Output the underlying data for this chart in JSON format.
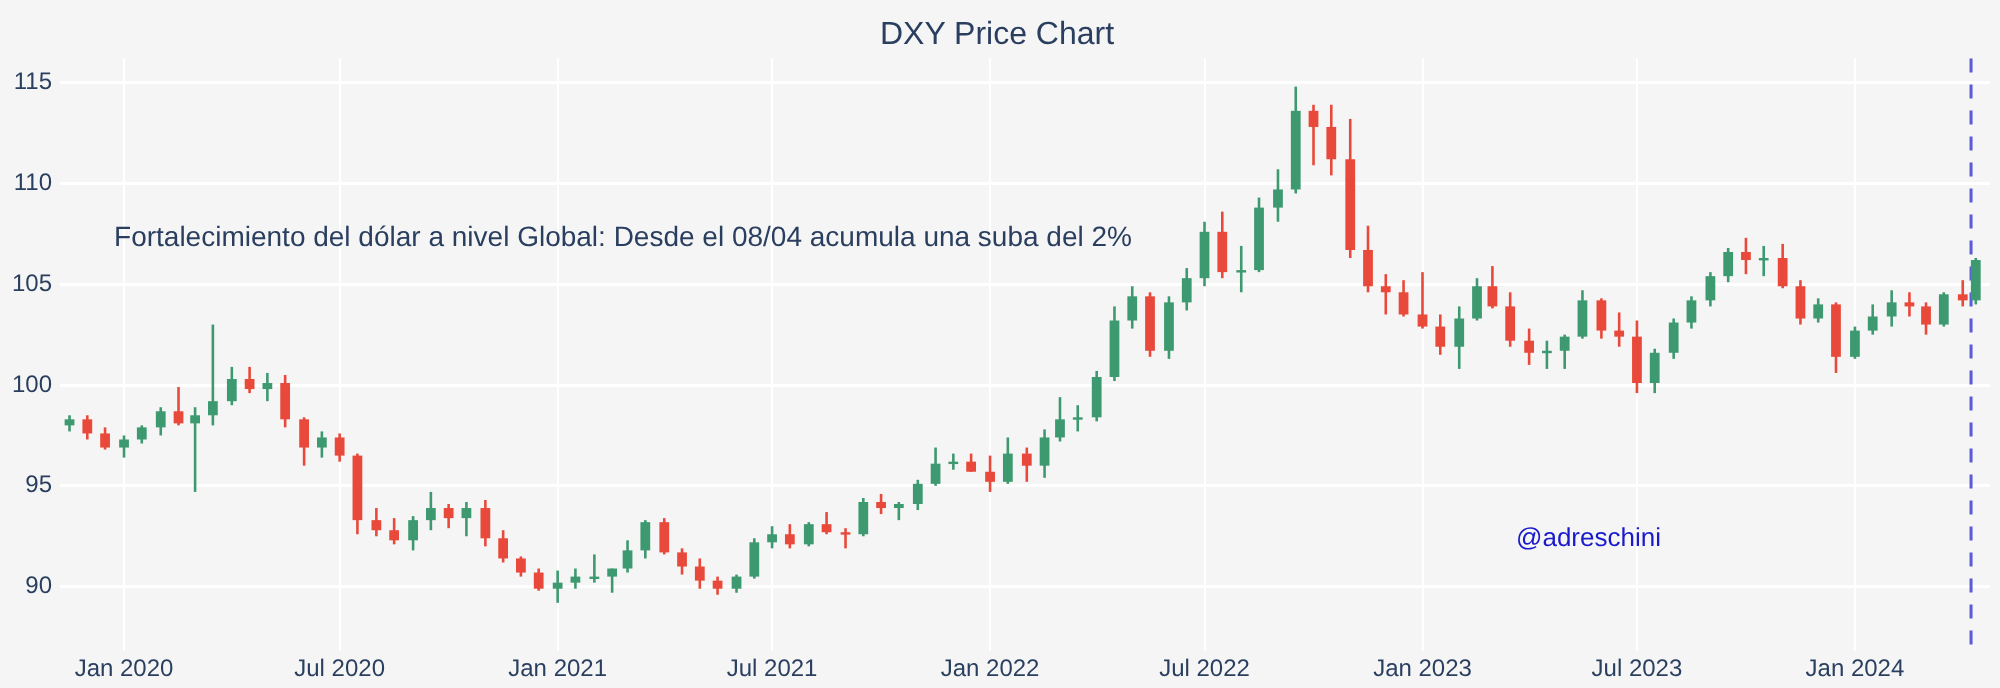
{
  "chart_data": {
    "type": "candlestick",
    "title": "DXY Price Chart",
    "annotations": [
      "Fortalecimiento del dólar a nivel Global: Desde el 08/04 acumula una suba del 2%",
      "@adreschini"
    ],
    "x": [
      "2019-11-16",
      "2019-12-01",
      "2019-12-16",
      "2020-01-01",
      "2020-01-16",
      "2020-02-01",
      "2020-02-16",
      "2020-03-01",
      "2020-03-16",
      "2020-04-01",
      "2020-04-16",
      "2020-05-01",
      "2020-05-16",
      "2020-06-01",
      "2020-06-16",
      "2020-07-01",
      "2020-07-16",
      "2020-08-01",
      "2020-08-16",
      "2020-09-01",
      "2020-09-16",
      "2020-10-01",
      "2020-10-16",
      "2020-11-01",
      "2020-11-16",
      "2020-12-01",
      "2020-12-16",
      "2021-01-01",
      "2021-01-16",
      "2021-02-01",
      "2021-02-16",
      "2021-03-01",
      "2021-03-16",
      "2021-04-01",
      "2021-04-16",
      "2021-05-01",
      "2021-05-16",
      "2021-06-01",
      "2021-06-16",
      "2021-07-01",
      "2021-07-16",
      "2021-08-01",
      "2021-08-16",
      "2021-09-01",
      "2021-09-16",
      "2021-10-01",
      "2021-10-16",
      "2021-11-01",
      "2021-11-16",
      "2021-12-01",
      "2021-12-16",
      "2022-01-01",
      "2022-01-16",
      "2022-02-01",
      "2022-02-16",
      "2022-03-01",
      "2022-03-16",
      "2022-04-01",
      "2022-04-16",
      "2022-05-01",
      "2022-05-16",
      "2022-06-01",
      "2022-06-16",
      "2022-07-01",
      "2022-07-16",
      "2022-08-01",
      "2022-08-16",
      "2022-09-01",
      "2022-09-16",
      "2022-10-01",
      "2022-10-16",
      "2022-11-01",
      "2022-11-16",
      "2022-12-01",
      "2022-12-16",
      "2023-01-01",
      "2023-01-16",
      "2023-02-01",
      "2023-02-16",
      "2023-03-01",
      "2023-03-16",
      "2023-04-01",
      "2023-04-16",
      "2023-05-01",
      "2023-05-16",
      "2023-06-01",
      "2023-06-16",
      "2023-07-01",
      "2023-07-16",
      "2023-08-01",
      "2023-08-16",
      "2023-09-01",
      "2023-09-16",
      "2023-10-01",
      "2023-10-16",
      "2023-11-01",
      "2023-11-16",
      "2023-12-01",
      "2023-12-16",
      "2024-01-01",
      "2024-01-16",
      "2024-02-01",
      "2024-02-16",
      "2024-03-01",
      "2024-03-16",
      "2024-04-01",
      "2024-04-12"
    ],
    "ohlc": [
      [
        98.0,
        98.5,
        97.7,
        98.3
      ],
      [
        98.3,
        98.5,
        97.3,
        97.6
      ],
      [
        97.6,
        97.9,
        96.8,
        96.9
      ],
      [
        96.9,
        97.5,
        96.4,
        97.3
      ],
      [
        97.3,
        98.0,
        97.1,
        97.9
      ],
      [
        97.9,
        98.9,
        97.5,
        98.7
      ],
      [
        98.7,
        99.9,
        98.0,
        98.1
      ],
      [
        98.1,
        98.9,
        94.7,
        98.5
      ],
      [
        98.5,
        103.0,
        98.0,
        99.2
      ],
      [
        99.2,
        100.9,
        99.0,
        100.3
      ],
      [
        100.3,
        100.9,
        99.6,
        99.8
      ],
      [
        99.8,
        100.6,
        99.2,
        100.1
      ],
      [
        100.1,
        100.5,
        97.9,
        98.3
      ],
      [
        98.3,
        98.4,
        96.0,
        96.9
      ],
      [
        96.9,
        97.7,
        96.4,
        97.4
      ],
      [
        97.4,
        97.6,
        96.2,
        96.5
      ],
      [
        96.5,
        96.6,
        92.6,
        93.3
      ],
      [
        93.3,
        93.9,
        92.5,
        92.8
      ],
      [
        92.8,
        93.4,
        92.1,
        92.3
      ],
      [
        92.3,
        93.5,
        91.8,
        93.3
      ],
      [
        93.3,
        94.7,
        92.8,
        93.9
      ],
      [
        93.9,
        94.1,
        92.9,
        93.4
      ],
      [
        93.4,
        94.2,
        92.5,
        93.9
      ],
      [
        93.9,
        94.3,
        92.0,
        92.4
      ],
      [
        92.4,
        92.8,
        91.2,
        91.4
      ],
      [
        91.4,
        91.5,
        90.5,
        90.7
      ],
      [
        90.7,
        90.9,
        89.8,
        89.9
      ],
      [
        89.9,
        90.8,
        89.2,
        90.2
      ],
      [
        90.2,
        90.9,
        89.9,
        90.5
      ],
      [
        90.5,
        91.6,
        90.2,
        90.5
      ],
      [
        90.5,
        90.9,
        89.7,
        90.9
      ],
      [
        90.9,
        92.3,
        90.7,
        91.8
      ],
      [
        91.8,
        93.3,
        91.4,
        93.2
      ],
      [
        93.2,
        93.4,
        91.6,
        91.7
      ],
      [
        91.7,
        91.9,
        90.6,
        91.0
      ],
      [
        91.0,
        91.4,
        89.9,
        90.3
      ],
      [
        90.3,
        90.5,
        89.6,
        89.9
      ],
      [
        89.9,
        90.6,
        89.7,
        90.5
      ],
      [
        90.5,
        92.4,
        90.4,
        92.2
      ],
      [
        92.2,
        93.0,
        91.9,
        92.6
      ],
      [
        92.6,
        93.1,
        91.9,
        92.1
      ],
      [
        92.1,
        93.2,
        92.0,
        93.1
      ],
      [
        93.1,
        93.7,
        92.6,
        92.7
      ],
      [
        92.7,
        92.9,
        91.9,
        92.6
      ],
      [
        92.6,
        94.4,
        92.5,
        94.2
      ],
      [
        94.2,
        94.6,
        93.6,
        93.9
      ],
      [
        93.9,
        94.2,
        93.3,
        94.1
      ],
      [
        94.1,
        95.3,
        93.8,
        95.1
      ],
      [
        95.1,
        96.9,
        95.0,
        96.1
      ],
      [
        96.1,
        96.6,
        95.8,
        96.2
      ],
      [
        96.2,
        96.6,
        95.7,
        95.7
      ],
      [
        95.7,
        96.5,
        94.7,
        95.2
      ],
      [
        95.2,
        97.4,
        95.1,
        96.6
      ],
      [
        96.6,
        96.9,
        95.2,
        96.0
      ],
      [
        96.0,
        97.8,
        95.4,
        97.4
      ],
      [
        97.4,
        99.4,
        97.2,
        98.3
      ],
      [
        98.3,
        99.0,
        97.7,
        98.4
      ],
      [
        98.4,
        100.7,
        98.2,
        100.4
      ],
      [
        100.4,
        103.9,
        100.2,
        103.2
      ],
      [
        103.2,
        104.9,
        102.8,
        104.4
      ],
      [
        104.4,
        104.6,
        101.4,
        101.7
      ],
      [
        101.7,
        104.4,
        101.3,
        104.1
      ],
      [
        104.1,
        105.8,
        103.7,
        105.3
      ],
      [
        105.3,
        108.1,
        104.9,
        107.6
      ],
      [
        107.6,
        108.6,
        105.3,
        105.6
      ],
      [
        105.6,
        106.9,
        104.6,
        105.7
      ],
      [
        105.7,
        109.3,
        105.6,
        108.8
      ],
      [
        108.8,
        110.7,
        108.1,
        109.7
      ],
      [
        109.7,
        114.8,
        109.5,
        113.6
      ],
      [
        113.6,
        113.9,
        110.9,
        112.8
      ],
      [
        112.8,
        113.9,
        110.4,
        111.2
      ],
      [
        111.2,
        113.2,
        106.3,
        106.7
      ],
      [
        106.7,
        107.9,
        104.6,
        104.9
      ],
      [
        104.9,
        105.5,
        103.5,
        104.6
      ],
      [
        104.6,
        105.2,
        103.4,
        103.5
      ],
      [
        103.5,
        105.6,
        102.8,
        102.9
      ],
      [
        102.9,
        103.5,
        101.5,
        101.9
      ],
      [
        101.9,
        103.9,
        100.8,
        103.3
      ],
      [
        103.3,
        105.3,
        103.2,
        104.9
      ],
      [
        104.9,
        105.9,
        103.8,
        103.9
      ],
      [
        103.9,
        104.6,
        101.9,
        102.2
      ],
      [
        102.2,
        102.8,
        101.0,
        101.6
      ],
      [
        101.6,
        102.2,
        100.8,
        101.7
      ],
      [
        101.7,
        102.5,
        100.8,
        102.4
      ],
      [
        102.4,
        104.7,
        102.3,
        104.2
      ],
      [
        104.2,
        104.3,
        102.3,
        102.7
      ],
      [
        102.7,
        103.6,
        101.9,
        102.4
      ],
      [
        102.4,
        103.2,
        99.6,
        100.1
      ],
      [
        100.1,
        101.8,
        99.6,
        101.6
      ],
      [
        101.6,
        103.3,
        101.3,
        103.1
      ],
      [
        103.1,
        104.4,
        102.8,
        104.2
      ],
      [
        104.2,
        105.6,
        103.9,
        105.4
      ],
      [
        105.4,
        106.8,
        105.1,
        106.6
      ],
      [
        106.6,
        107.3,
        105.5,
        106.2
      ],
      [
        106.2,
        106.9,
        105.4,
        106.3
      ],
      [
        106.3,
        107.0,
        104.8,
        104.9
      ],
      [
        104.9,
        105.2,
        103.0,
        103.3
      ],
      [
        103.3,
        104.3,
        103.1,
        104.0
      ],
      [
        104.0,
        104.1,
        100.6,
        101.4
      ],
      [
        101.4,
        102.9,
        101.3,
        102.7
      ],
      [
        102.7,
        104.0,
        102.5,
        103.4
      ],
      [
        103.4,
        104.7,
        102.9,
        104.1
      ],
      [
        104.1,
        104.6,
        103.4,
        103.9
      ],
      [
        103.9,
        104.1,
        102.5,
        103.0
      ],
      [
        103.0,
        104.6,
        102.9,
        104.5
      ],
      [
        104.5,
        105.2,
        103.9,
        104.2
      ],
      [
        104.2,
        106.3,
        104.0,
        106.2
      ]
    ],
    "xlim": [
      "2019-11-08",
      "2024-04-24"
    ],
    "xticks": [
      {
        "value": "2020-01-01",
        "label": "Jan 2020"
      },
      {
        "value": "2020-07-01",
        "label": "Jul 2020"
      },
      {
        "value": "2021-01-01",
        "label": "Jan 2021"
      },
      {
        "value": "2021-07-01",
        "label": "Jul 2021"
      },
      {
        "value": "2022-01-01",
        "label": "Jan 2022"
      },
      {
        "value": "2022-07-01",
        "label": "Jul 2022"
      },
      {
        "value": "2023-01-01",
        "label": "Jan 2023"
      },
      {
        "value": "2023-07-01",
        "label": "Jul 2023"
      },
      {
        "value": "2024-01-01",
        "label": "Jan 2024"
      }
    ],
    "ylim": [
      86.8,
      116.2
    ],
    "yticks": [
      90,
      95,
      100,
      105,
      110,
      115
    ],
    "ref_lines": [
      {
        "axis": "x",
        "value": "2024-04-08",
        "color": "#5b5bd6",
        "line_style": "dashed"
      }
    ],
    "grid": true,
    "legend": false
  }
}
